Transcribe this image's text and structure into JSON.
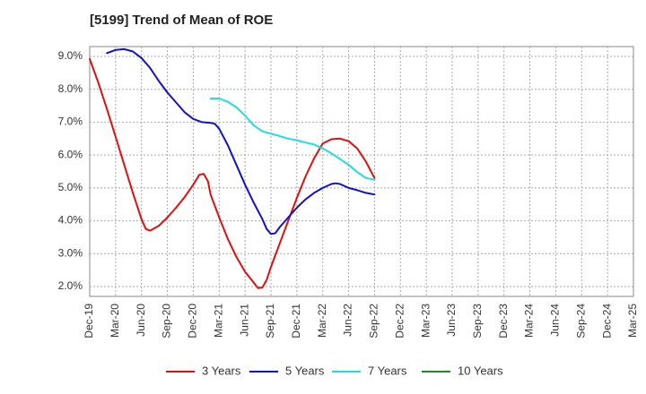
{
  "chart_data": {
    "type": "line",
    "title": "[5199]  Trend of Mean of ROE",
    "xlabel": "",
    "ylabel": "",
    "x_ticks": [
      "Dec-19",
      "Mar-20",
      "Jun-20",
      "Sep-20",
      "Dec-20",
      "Mar-21",
      "Jun-21",
      "Sep-21",
      "Dec-21",
      "Mar-22",
      "Jun-22",
      "Sep-22",
      "Dec-22",
      "Mar-23",
      "Jun-23",
      "Sep-23",
      "Dec-23",
      "Mar-24",
      "Jun-24",
      "Sep-24",
      "Dec-24",
      "Mar-25"
    ],
    "y_ticks": [
      "2.0%",
      "3.0%",
      "4.0%",
      "5.0%",
      "6.0%",
      "7.0%",
      "8.0%",
      "9.0%"
    ],
    "ylim": [
      1.7,
      9.3
    ],
    "grid": true,
    "legend_position": "bottom",
    "series": [
      {
        "name": "3 Years",
        "color": "#dd1111",
        "points": [
          [
            0,
            8.92
          ],
          [
            1,
            8.2
          ],
          [
            2,
            7.4
          ],
          [
            3,
            6.55
          ],
          [
            4,
            5.7
          ],
          [
            5,
            4.85
          ],
          [
            6,
            4.05
          ],
          [
            6.5,
            3.75
          ],
          [
            7,
            3.7
          ],
          [
            8,
            3.85
          ],
          [
            9,
            4.1
          ],
          [
            10,
            4.4
          ],
          [
            11,
            4.72
          ],
          [
            12,
            5.1
          ],
          [
            12.7,
            5.4
          ],
          [
            13.2,
            5.43
          ],
          [
            13.7,
            5.2
          ],
          [
            14,
            4.8
          ],
          [
            15,
            4.1
          ],
          [
            16,
            3.45
          ],
          [
            17,
            2.9
          ],
          [
            18,
            2.45
          ],
          [
            19,
            2.12
          ],
          [
            19.5,
            1.95
          ],
          [
            20,
            1.97
          ],
          [
            20.5,
            2.2
          ],
          [
            21,
            2.6
          ],
          [
            22,
            3.3
          ],
          [
            23,
            4.0
          ],
          [
            24,
            4.7
          ],
          [
            25,
            5.35
          ],
          [
            26,
            5.9
          ],
          [
            27,
            6.35
          ],
          [
            28,
            6.48
          ],
          [
            29,
            6.5
          ],
          [
            30,
            6.42
          ],
          [
            31,
            6.2
          ],
          [
            32,
            5.8
          ],
          [
            33,
            5.3
          ]
        ]
      },
      {
        "name": "5 Years",
        "color": "#1111cc",
        "points": [
          [
            2,
            9.1
          ],
          [
            3,
            9.2
          ],
          [
            4,
            9.22
          ],
          [
            5,
            9.15
          ],
          [
            6,
            8.95
          ],
          [
            7,
            8.65
          ],
          [
            8,
            8.25
          ],
          [
            9,
            7.9
          ],
          [
            10,
            7.6
          ],
          [
            11,
            7.3
          ],
          [
            12,
            7.1
          ],
          [
            13,
            7.0
          ],
          [
            14,
            6.98
          ],
          [
            14.5,
            6.95
          ],
          [
            15,
            6.8
          ],
          [
            16,
            6.3
          ],
          [
            17,
            5.7
          ],
          [
            18,
            5.1
          ],
          [
            19,
            4.55
          ],
          [
            20,
            4.05
          ],
          [
            20.5,
            3.75
          ],
          [
            21,
            3.6
          ],
          [
            21.5,
            3.62
          ],
          [
            22,
            3.8
          ],
          [
            23,
            4.1
          ],
          [
            24,
            4.4
          ],
          [
            25,
            4.65
          ],
          [
            26,
            4.85
          ],
          [
            27,
            5.0
          ],
          [
            28,
            5.12
          ],
          [
            28.5,
            5.14
          ],
          [
            29,
            5.12
          ],
          [
            30,
            5.0
          ],
          [
            31,
            4.93
          ],
          [
            32,
            4.85
          ],
          [
            33,
            4.8
          ]
        ]
      },
      {
        "name": "7 Years",
        "color": "#22dddd",
        "points": [
          [
            14,
            7.72
          ],
          [
            15,
            7.72
          ],
          [
            16,
            7.62
          ],
          [
            17,
            7.45
          ],
          [
            18,
            7.2
          ],
          [
            19,
            6.9
          ],
          [
            20,
            6.72
          ],
          [
            21,
            6.65
          ],
          [
            22,
            6.58
          ],
          [
            23,
            6.5
          ],
          [
            24,
            6.45
          ],
          [
            25,
            6.38
          ],
          [
            26,
            6.32
          ],
          [
            27,
            6.2
          ],
          [
            28,
            6.05
          ],
          [
            29,
            5.88
          ],
          [
            30,
            5.7
          ],
          [
            31,
            5.48
          ],
          [
            32,
            5.3
          ],
          [
            33,
            5.25
          ]
        ]
      },
      {
        "name": "10 Years",
        "color": "#228822",
        "points": []
      }
    ]
  }
}
